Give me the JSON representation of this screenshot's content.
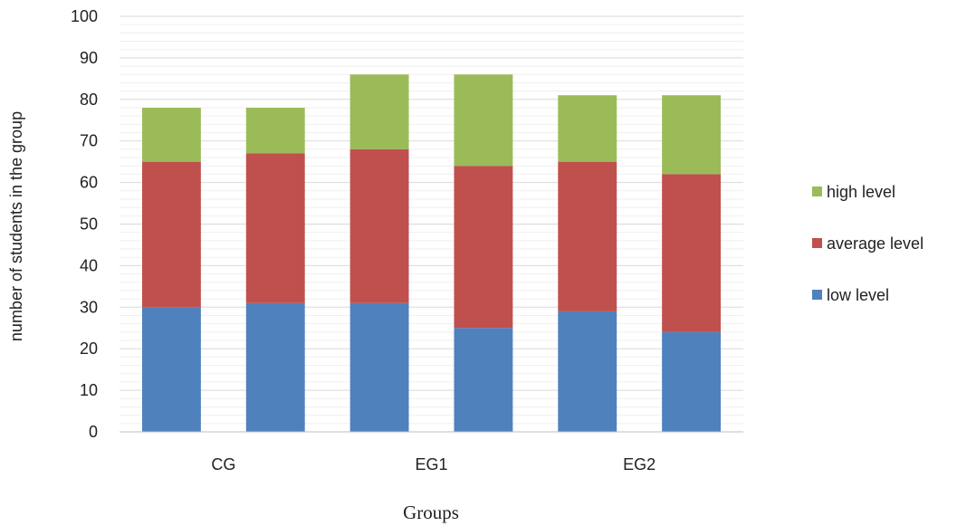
{
  "chart_data": {
    "type": "bar",
    "stacked": true,
    "title": "",
    "xlabel": "Groups",
    "ylabel": "number of students in the group",
    "ylim": [
      0,
      100
    ],
    "ytick_step": 10,
    "grid": true,
    "legend_position": "right",
    "category_labels": [
      "CG",
      "EG1",
      "EG2"
    ],
    "bars_per_category": 2,
    "series": [
      {
        "name": "low level",
        "color": "#4F81BD",
        "values": [
          30,
          31,
          31,
          25,
          29,
          24
        ]
      },
      {
        "name": "average level",
        "color": "#C0504D",
        "values": [
          35,
          36,
          37,
          39,
          36,
          38
        ]
      },
      {
        "name": "high level",
        "color": "#9BBB59",
        "values": [
          13,
          11,
          18,
          22,
          16,
          19
        ]
      }
    ]
  }
}
